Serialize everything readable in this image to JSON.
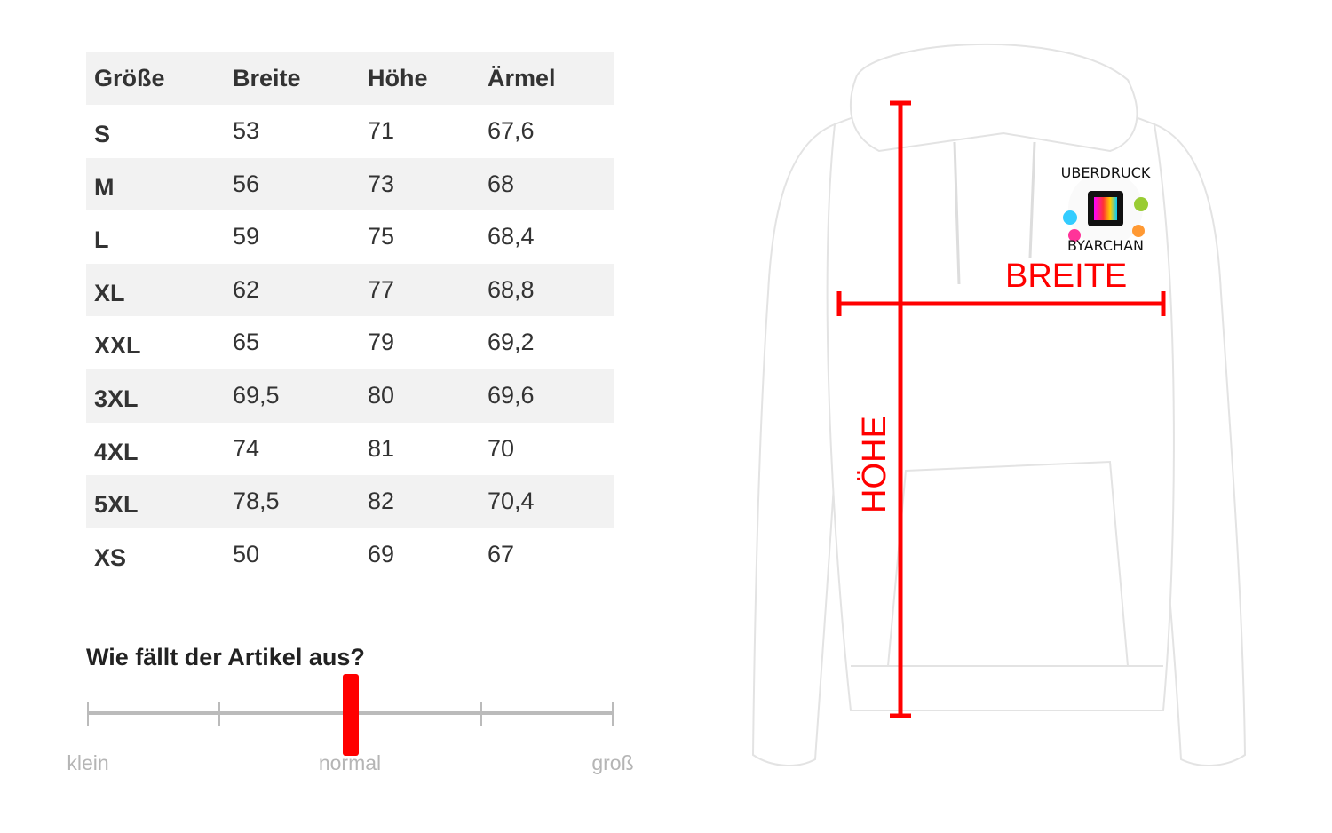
{
  "table": {
    "headers": [
      "Größe",
      "Breite",
      "Höhe",
      "Ärmel"
    ],
    "rows": [
      [
        "S",
        "53",
        "71",
        "67,6"
      ],
      [
        "M",
        "56",
        "73",
        "68"
      ],
      [
        "L",
        "59",
        "75",
        "68,4"
      ],
      [
        "XL",
        "62",
        "77",
        "68,8"
      ],
      [
        "XXL",
        "65",
        "79",
        "69,2"
      ],
      [
        "3XL",
        "69,5",
        "80",
        "69,6"
      ],
      [
        "4XL",
        "74",
        "81",
        "70"
      ],
      [
        "5XL",
        "78,5",
        "82",
        "70,4"
      ],
      [
        "XS",
        "50",
        "69",
        "67"
      ]
    ]
  },
  "fit": {
    "title": "Wie fällt der Artikel aus?",
    "labels": {
      "left": "klein",
      "middle": "normal",
      "right": "groß"
    },
    "value_fraction": 0.5,
    "marker_color": "#ff0000"
  },
  "illustration": {
    "width_label": "BREITE",
    "height_label": "HÖHE",
    "line_color": "#ff0000",
    "logo_text": "UBERDRUCK BYARCHAN"
  }
}
